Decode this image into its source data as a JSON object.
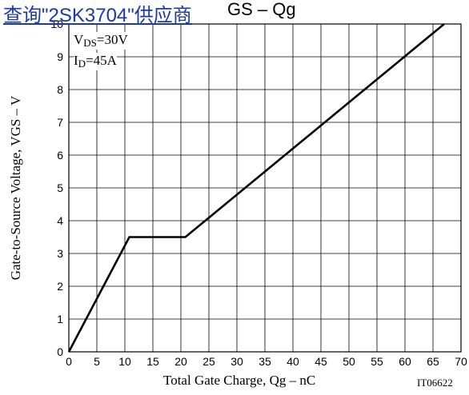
{
  "header": {
    "link_text": "查询\"2SK3704\"供应商",
    "chart_title_visible": "GS  –  Qg"
  },
  "chart_data": {
    "type": "line",
    "xlabel": "Total Gate Charge,  Qg  –  nC",
    "ylabel": "Gate-to-Source Voltage,  VGS  –  V",
    "xlim": [
      0,
      70
    ],
    "ylim": [
      0,
      10
    ],
    "x_ticks": [
      0,
      5,
      10,
      15,
      20,
      25,
      30,
      35,
      40,
      45,
      50,
      55,
      60,
      65,
      70
    ],
    "y_ticks": [
      0,
      1,
      2,
      3,
      4,
      5,
      6,
      7,
      8,
      9,
      10
    ],
    "grid": true,
    "series": [
      {
        "x": [
          0,
          10.8,
          20.8,
          67
        ],
        "y": [
          0,
          3.5,
          3.5,
          10
        ]
      }
    ],
    "annotations": {
      "vds": {
        "prefix": "V",
        "sub": "DS",
        "suffix": "=30V"
      },
      "id": {
        "prefix": "I",
        "sub": "D",
        "suffix": "=45A"
      }
    },
    "figure_code": "IT06622"
  }
}
